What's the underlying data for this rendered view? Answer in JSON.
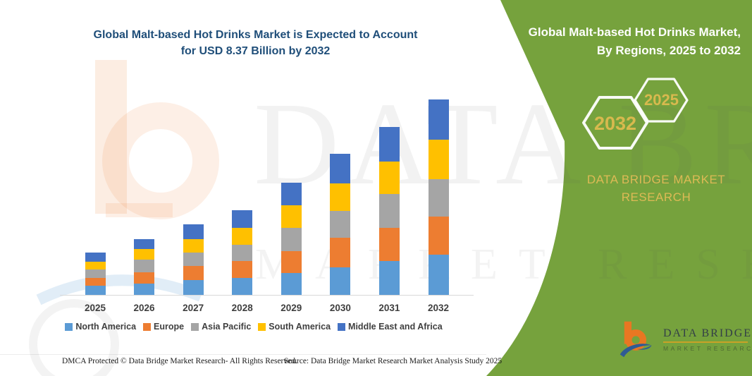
{
  "left": {
    "title_line1": "Global Malt-based Hot Drinks Market is Expected to Account",
    "title_line2": "for USD 8.37 Billion by 2032",
    "title_color": "#1F4E79"
  },
  "chart_data": {
    "type": "bar",
    "stacked": true,
    "title": "Global Malt-based Hot Drinks Market is Expected to Account for USD 8.37 Billion by 2032",
    "unit": "USD Billion",
    "xlabel": "",
    "ylabel": "",
    "ylim": [
      0,
      8.37
    ],
    "grid": false,
    "legend_position": "bottom",
    "categories": [
      "2025",
      "2026",
      "2027",
      "2028",
      "2029",
      "2030",
      "2031",
      "2032"
    ],
    "series": [
      {
        "name": "North America",
        "color": "#5B9BD5",
        "values": [
          0.39,
          0.5,
          0.65,
          0.73,
          0.93,
          1.19,
          1.44,
          1.71
        ]
      },
      {
        "name": "Europe",
        "color": "#ED7D31",
        "values": [
          0.34,
          0.48,
          0.6,
          0.73,
          0.94,
          1.26,
          1.44,
          1.66
        ]
      },
      {
        "name": "Asia Pacific",
        "color": "#A5A5A5",
        "values": [
          0.36,
          0.52,
          0.56,
          0.67,
          1.01,
          1.16,
          1.45,
          1.59
        ]
      },
      {
        "name": "South America",
        "color": "#FFC000",
        "values": [
          0.34,
          0.46,
          0.59,
          0.75,
          0.96,
          1.16,
          1.39,
          1.7
        ]
      },
      {
        "name": "Middle East and Africa",
        "color": "#4472C4",
        "values": [
          0.39,
          0.42,
          0.61,
          0.73,
          0.96,
          1.26,
          1.46,
          1.71
        ]
      }
    ],
    "totals": [
      1.82,
      2.38,
      3.01,
      3.61,
      4.8,
      6.03,
      7.18,
      8.37
    ]
  },
  "panel": {
    "bg_color": "#76A23D",
    "title_line1": "Global Malt-based Hot Drinks Market,",
    "title_line2": "By Regions, 2025 to 2032",
    "hex_back_label": "2032",
    "hex_front_label": "2025",
    "brand_line1": "DATA BRIDGE MARKET",
    "brand_line2": "RESEARCH",
    "brand_color": "#DDBA55"
  },
  "logo": {
    "name_line1": "DATA BRIDGE",
    "name_line2": "MARKET RESEARCH"
  },
  "watermark": {
    "text1": "DATA BRIDGE",
    "text2": "MARKET RESEARCH"
  },
  "footer": {
    "dmca": "DMCA Protected © Data Bridge Market Research-  All Rights Reserved.",
    "source": "Source: Data Bridge Market Research  Market Analysis Study 2025"
  }
}
